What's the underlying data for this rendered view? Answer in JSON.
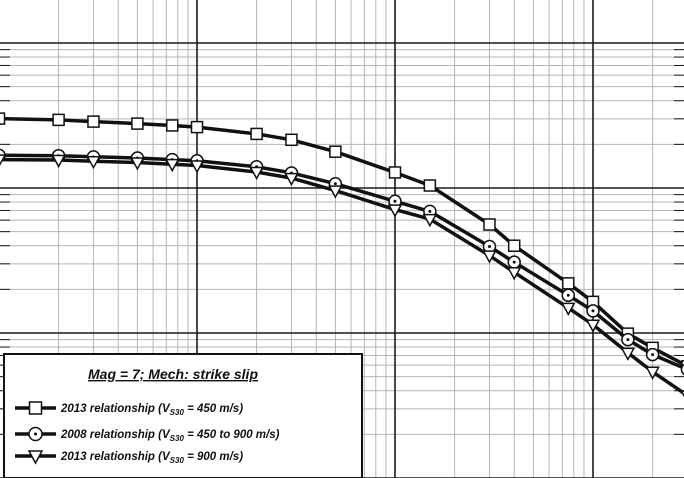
{
  "chart_data": {
    "type": "line",
    "title": "",
    "xlabel": "",
    "ylabel": "",
    "x_scale": "log",
    "y_scale": "log",
    "grid": true,
    "legend_position": "bottom-left",
    "colors": {
      "line": "#111111",
      "grid_major": "#1a1a1a",
      "grid_minor": "#b5b5b5",
      "background": "#ffffff"
    },
    "legend": {
      "header": "Mag = 7; Mech: strike slip",
      "entries": [
        {
          "pre": "2013 relationship (V",
          "sub": "S30",
          "post": " = 450 m/s)",
          "marker": "square"
        },
        {
          "pre": "2008 relationship (V",
          "sub": "S30",
          "post": " = 450 to 900 m/s)",
          "marker": "circle-dot"
        },
        {
          "pre": "2013 relationship (V",
          "sub": "S30",
          "post": " = 900 m/s)",
          "marker": "triangle-down"
        }
      ]
    },
    "series": [
      {
        "marker": "square",
        "points": [
          [
            0.01,
            0.301
          ],
          [
            0.02,
            0.295
          ],
          [
            0.03,
            0.287
          ],
          [
            0.05,
            0.278
          ],
          [
            0.075,
            0.27
          ],
          [
            0.1,
            0.263
          ],
          [
            0.2,
            0.236
          ],
          [
            0.3,
            0.215
          ],
          [
            0.5,
            0.178
          ],
          [
            1.0,
            0.128
          ],
          [
            1.5,
            0.104
          ],
          [
            3.0,
            0.056
          ],
          [
            4.0,
            0.04
          ],
          [
            7.5,
            0.022
          ],
          [
            10.0,
            0.0164
          ],
          [
            15.0,
            0.0099
          ],
          [
            20.0,
            0.0079
          ],
          [
            30.0,
            0.0059
          ],
          [
            40.0,
            0.0044
          ],
          [
            50.0,
            0.0034
          ]
        ]
      },
      {
        "marker": "circle-dot",
        "points": [
          [
            0.01,
            0.168
          ],
          [
            0.02,
            0.167
          ],
          [
            0.03,
            0.164
          ],
          [
            0.05,
            0.161
          ],
          [
            0.075,
            0.157
          ],
          [
            0.1,
            0.154
          ],
          [
            0.2,
            0.14
          ],
          [
            0.3,
            0.127
          ],
          [
            0.5,
            0.107
          ],
          [
            1.0,
            0.081
          ],
          [
            1.5,
            0.069
          ],
          [
            3.0,
            0.0395
          ],
          [
            4.0,
            0.0308
          ],
          [
            7.5,
            0.0182
          ],
          [
            10.0,
            0.0142
          ],
          [
            15.0,
            0.009
          ],
          [
            20.0,
            0.0071
          ],
          [
            30.0,
            0.0056
          ],
          [
            40.0,
            0.0042
          ],
          [
            50.0,
            0.0036
          ]
        ]
      },
      {
        "marker": "triangle-down",
        "points": [
          [
            0.01,
            0.157
          ],
          [
            0.02,
            0.156
          ],
          [
            0.03,
            0.153
          ],
          [
            0.05,
            0.15
          ],
          [
            0.075,
            0.146
          ],
          [
            0.1,
            0.143
          ],
          [
            0.2,
            0.129
          ],
          [
            0.3,
            0.117
          ],
          [
            0.5,
            0.096
          ],
          [
            1.0,
            0.071
          ],
          [
            1.5,
            0.061
          ],
          [
            3.0,
            0.0342
          ],
          [
            4.0,
            0.0262
          ],
          [
            7.5,
            0.0149
          ],
          [
            10.0,
            0.0114
          ],
          [
            15.0,
            0.0073
          ],
          [
            20.0,
            0.0054
          ],
          [
            30.0,
            0.0037
          ],
          [
            40.0,
            0.0025
          ],
          [
            50.0,
            0.0019
          ]
        ]
      }
    ]
  }
}
